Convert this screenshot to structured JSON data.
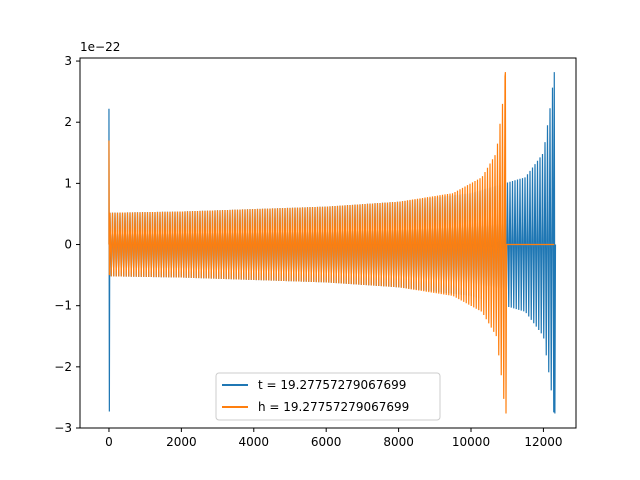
{
  "chart_data": {
    "type": "line",
    "title": "",
    "xlabel": "",
    "ylabel": "",
    "xlim": [
      -800,
      12900
    ],
    "ylim": [
      -3.0,
      3.05
    ],
    "y_offset_label": "1e−22",
    "x_ticks": [
      0,
      2000,
      4000,
      6000,
      8000,
      10000,
      12000
    ],
    "x_tick_labels": [
      "0",
      "2000",
      "4000",
      "6000",
      "8000",
      "10000",
      "12000"
    ],
    "y_ticks": [
      -3,
      -2,
      -1,
      0,
      1,
      2,
      3
    ],
    "y_tick_labels": [
      "−3",
      "−2",
      "−1",
      "0",
      "1",
      "2",
      "3"
    ],
    "grid": false,
    "legend_position": "lower center",
    "series": [
      {
        "name": "t = 19.27757279067699",
        "color": "#1f77b4",
        "spike_x": 0,
        "spike_range": [
          -2.73,
          2.22
        ],
        "inspiral_x": [
          0,
          2000,
          4000,
          6000,
          8000,
          10000,
          11500,
          12000,
          12200,
          12300
        ],
        "envelope": [
          0.52,
          0.54,
          0.58,
          0.62,
          0.7,
          0.84,
          1.1,
          1.5,
          2.3,
          2.82
        ],
        "end_x": 12300
      },
      {
        "name": "h = 19.27757279067699",
        "color": "#ff7f0e",
        "spike_x": 0,
        "spike_range": [
          -0.5,
          1.7
        ],
        "inspiral_x": [
          0,
          2000,
          4000,
          6000,
          8000,
          9500,
          10300,
          10700,
          10870,
          10950
        ],
        "envelope": [
          0.52,
          0.54,
          0.58,
          0.62,
          0.7,
          0.84,
          1.1,
          1.5,
          2.3,
          2.82
        ],
        "end_x": 10950,
        "flat_until_x": 12300
      }
    ]
  }
}
